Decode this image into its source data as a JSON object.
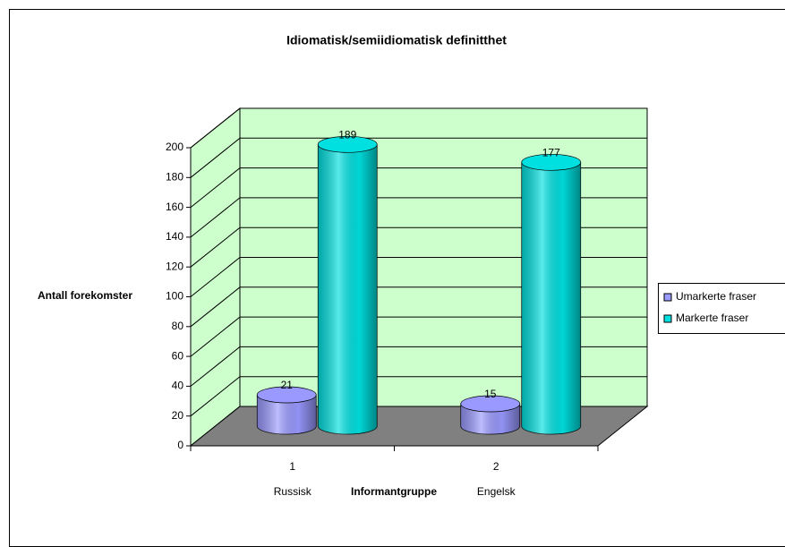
{
  "chart_data": {
    "type": "cylinder3d",
    "title": "Idiomatisk/semiidiomatisk definitthet",
    "categories": [
      "1",
      "2"
    ],
    "category_sublabels": [
      "Russisk",
      "Engelsk"
    ],
    "x_label": "Informantgruppe",
    "y_label": "Antall forekomster",
    "series": [
      {
        "name": "Umarkerte fraser",
        "color": "#9999ff",
        "values": [
          21,
          15
        ]
      },
      {
        "name": "Markerte fraser",
        "color": "#00e0e0",
        "values": [
          189,
          177
        ]
      }
    ],
    "ylim": [
      0,
      200
    ],
    "yticks": [
      0,
      20,
      40,
      60,
      80,
      100,
      120,
      140,
      160,
      180,
      200
    ],
    "grid": true,
    "legend": "right",
    "wall_color": "#ccffcc",
    "floor_color": "#808080"
  }
}
